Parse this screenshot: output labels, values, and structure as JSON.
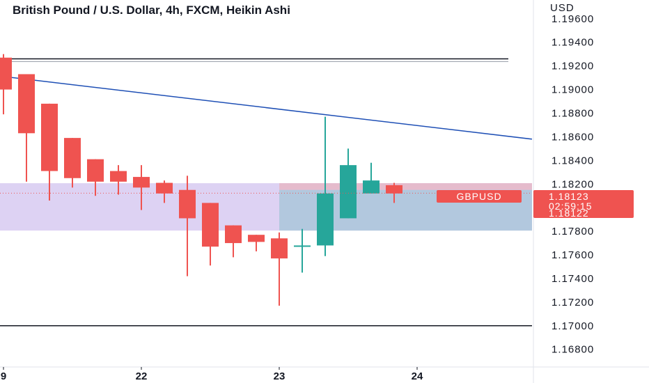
{
  "chart_data": {
    "type": "candlestick",
    "title": "British Pound / U.S. Dollar, 4h, FXCM, Heikin Ashi",
    "currency": "USD",
    "symbol": "GBPUSD",
    "last_price": "1.18123",
    "countdown": "02:59:15",
    "bid_price": "1.18122",
    "ylim": [
      1.1671,
      1.1964
    ],
    "y_ticks": [
      "1.19600",
      "1.19400",
      "1.19200",
      "1.19000",
      "1.18800",
      "1.18600",
      "1.18400",
      "1.18200",
      "1.18000",
      "1.17800",
      "1.17600",
      "1.17400",
      "1.17200",
      "1.17000",
      "1.16800"
    ],
    "x_ticks": [
      {
        "label": "9",
        "index": 0
      },
      {
        "label": "22",
        "index": 6
      },
      {
        "label": "23",
        "index": 12
      },
      {
        "label": "24",
        "index": 18
      }
    ],
    "candles": [
      {
        "o": 1.1927,
        "h": 1.193,
        "l": 1.1879,
        "c": 1.19,
        "dir": "down"
      },
      {
        "o": 1.1913,
        "h": 1.1913,
        "l": 1.1822,
        "c": 1.1863,
        "dir": "down"
      },
      {
        "o": 1.1888,
        "h": 1.1888,
        "l": 1.1806,
        "c": 1.1831,
        "dir": "down"
      },
      {
        "o": 1.1859,
        "h": 1.1859,
        "l": 1.1817,
        "c": 1.1825,
        "dir": "down"
      },
      {
        "o": 1.1841,
        "h": 1.1841,
        "l": 1.181,
        "c": 1.1822,
        "dir": "down"
      },
      {
        "o": 1.1831,
        "h": 1.1836,
        "l": 1.1811,
        "c": 1.1822,
        "dir": "down"
      },
      {
        "o": 1.1826,
        "h": 1.1836,
        "l": 1.1798,
        "c": 1.1817,
        "dir": "down"
      },
      {
        "o": 1.1821,
        "h": 1.1823,
        "l": 1.1804,
        "c": 1.1812,
        "dir": "down"
      },
      {
        "o": 1.1815,
        "h": 1.1827,
        "l": 1.1742,
        "c": 1.1791,
        "dir": "down"
      },
      {
        "o": 1.1804,
        "h": 1.1804,
        "l": 1.1751,
        "c": 1.1767,
        "dir": "down"
      },
      {
        "o": 1.1785,
        "h": 1.1785,
        "l": 1.1758,
        "c": 1.177,
        "dir": "down"
      },
      {
        "o": 1.1777,
        "h": 1.1777,
        "l": 1.1763,
        "c": 1.1771,
        "dir": "down"
      },
      {
        "o": 1.1774,
        "h": 1.1779,
        "l": 1.1717,
        "c": 1.1757,
        "dir": "down"
      },
      {
        "o": 1.1768,
        "h": 1.1782,
        "l": 1.1745,
        "c": 1.1768,
        "dir": "up"
      },
      {
        "o": 1.1768,
        "h": 1.1877,
        "l": 1.1759,
        "c": 1.1812,
        "dir": "up"
      },
      {
        "o": 1.1791,
        "h": 1.185,
        "l": 1.1791,
        "c": 1.1836,
        "dir": "up"
      },
      {
        "o": 1.1812,
        "h": 1.1838,
        "l": 1.1812,
        "c": 1.1823,
        "dir": "up"
      },
      {
        "o": 1.1819,
        "h": 1.1821,
        "l": 1.1804,
        "c": 1.1812,
        "dir": "down"
      }
    ],
    "horizontal_lines": [
      1.1926,
      1.17
    ],
    "trendline": {
      "from": {
        "index": 0,
        "y": 1.1911
      },
      "to": {
        "index": 24.8,
        "y": 1.1858
      }
    },
    "zones": [
      {
        "start_index": -1,
        "end_index": 24.8,
        "top": 1.18207,
        "bottom": 1.17806,
        "color": "#d9cdf2"
      },
      {
        "start_index": 12,
        "end_index": 24.8,
        "top": 1.18207,
        "bottom": 1.1815,
        "color": "#e6b8c8"
      },
      {
        "start_index": 12,
        "end_index": 24.8,
        "top": 1.1815,
        "bottom": 1.17806,
        "color": "#adc6dc"
      }
    ],
    "colors": {
      "up": "#26a69a",
      "down": "#ef5350",
      "trendline": "#1e4fb5",
      "horizontal": "#131722",
      "price_line": "#ef5350",
      "tag": "#ef5350"
    }
  }
}
